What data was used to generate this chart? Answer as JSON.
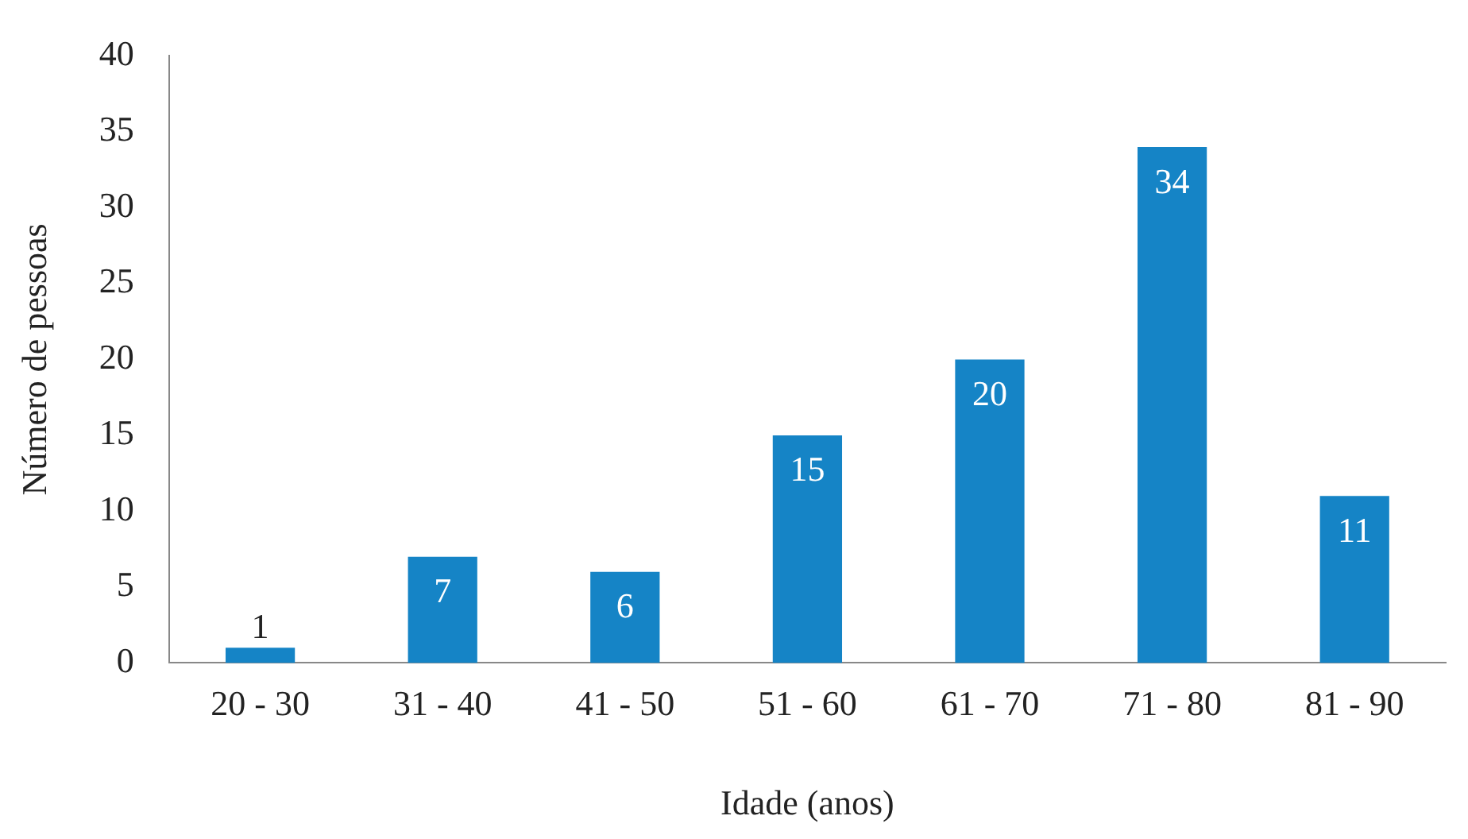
{
  "chart_data": {
    "type": "bar",
    "xlabel": "Idade (anos)",
    "ylabel": "Número de pessoas",
    "categories": [
      "20 - 30",
      "31 - 40",
      "41 - 50",
      "51 - 60",
      "61 - 70",
      "71 - 80",
      "81 - 90"
    ],
    "values": [
      1,
      7,
      6,
      15,
      20,
      34,
      11
    ],
    "color": "#1584c6",
    "ylim": [
      0,
      40
    ],
    "yticks": [
      0,
      5,
      10,
      15,
      20,
      25,
      30,
      35,
      40
    ],
    "grid": false,
    "legend": false,
    "data_labels": true
  }
}
